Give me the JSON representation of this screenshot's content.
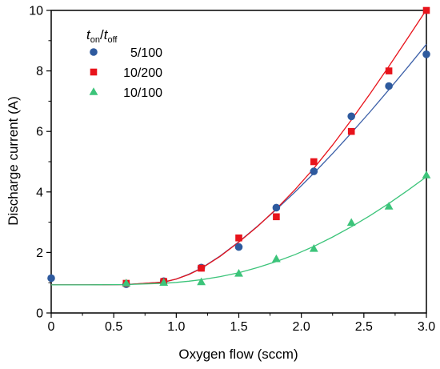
{
  "chart_data": {
    "type": "scatter",
    "title": "",
    "xlabel": "Oxygen flow (sccm)",
    "ylabel": "Discharge current (A)",
    "xlim": [
      0,
      3.0
    ],
    "ylim": [
      0,
      10
    ],
    "xticks": [
      "0",
      "0.5",
      "1.0",
      "1.5",
      "2.0",
      "2.5",
      "3.0"
    ],
    "yticks": [
      "0",
      "2",
      "4",
      "6",
      "8",
      "10"
    ],
    "grid": false,
    "legend_position": "top-left",
    "legend_title": {
      "main": "t",
      "on": "on",
      "slash": "/",
      "main2": "t",
      "off": "off"
    },
    "series": [
      {
        "name": "5/100",
        "marker": "circle",
        "color": "#2e5a9e",
        "x": [
          0,
          0.6,
          0.9,
          1.2,
          1.5,
          1.8,
          2.1,
          2.4,
          2.7,
          3.0
        ],
        "y": [
          1.15,
          0.95,
          1.05,
          1.5,
          2.18,
          3.48,
          4.68,
          6.5,
          7.5,
          8.55
        ],
        "fit_color": "#3b5fa8",
        "fit_x": [
          0,
          0.3,
          0.6,
          0.9,
          1.0,
          1.1,
          1.2,
          1.35,
          1.5,
          1.65,
          1.8,
          1.95,
          2.1,
          2.25,
          2.4,
          2.55,
          2.7,
          2.85,
          3.0
        ],
        "fit_y": [
          0.93,
          0.93,
          0.94,
          1.02,
          1.12,
          1.28,
          1.48,
          1.88,
          2.35,
          2.87,
          3.42,
          4.0,
          4.62,
          5.27,
          5.95,
          6.65,
          7.38,
          8.12,
          8.88
        ]
      },
      {
        "name": "10/200",
        "marker": "square",
        "color": "#e8131b",
        "x": [
          0.6,
          0.9,
          1.2,
          1.5,
          1.8,
          2.1,
          2.4,
          2.7,
          3.0
        ],
        "y": [
          0.98,
          1.04,
          1.48,
          2.48,
          3.18,
          5.0,
          6.0,
          8.0,
          10.0
        ],
        "fit_color": "#e8131b",
        "fit_x": [
          0,
          0.3,
          0.6,
          0.9,
          1.0,
          1.1,
          1.2,
          1.35,
          1.5,
          1.65,
          1.8,
          1.95,
          2.1,
          2.25,
          2.4,
          2.55,
          2.7,
          2.85,
          3.0
        ],
        "fit_y": [
          0.93,
          0.93,
          0.94,
          1.02,
          1.12,
          1.27,
          1.47,
          1.87,
          2.34,
          2.86,
          3.44,
          4.08,
          4.78,
          5.55,
          6.38,
          7.25,
          8.15,
          9.08,
          10.02
        ]
      },
      {
        "name": "10/100",
        "marker": "triangle",
        "color": "#3cc47a",
        "x": [
          0.6,
          0.9,
          1.2,
          1.5,
          1.8,
          2.1,
          2.4,
          2.7,
          3.0
        ],
        "y": [
          0.98,
          1.0,
          1.02,
          1.3,
          1.78,
          2.12,
          2.98,
          3.52,
          4.55
        ],
        "fit_color": "#3cc47a",
        "fit_x": [
          0,
          0.3,
          0.6,
          0.9,
          1.0,
          1.1,
          1.2,
          1.35,
          1.5,
          1.65,
          1.8,
          1.95,
          2.1,
          2.25,
          2.4,
          2.55,
          2.7,
          2.85,
          3.0
        ],
        "fit_y": [
          0.93,
          0.93,
          0.94,
          0.98,
          1.01,
          1.05,
          1.1,
          1.2,
          1.33,
          1.5,
          1.7,
          1.93,
          2.2,
          2.51,
          2.85,
          3.22,
          3.62,
          4.05,
          4.5
        ]
      }
    ]
  }
}
